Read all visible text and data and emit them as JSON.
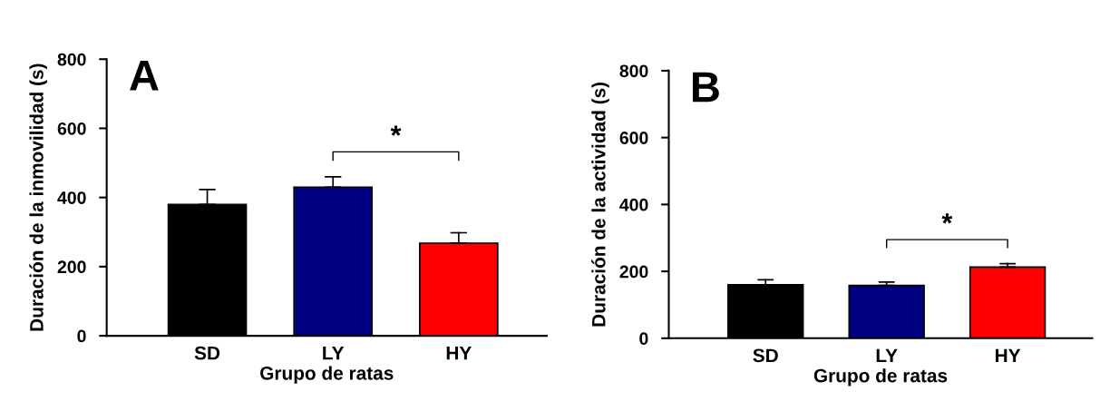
{
  "chart_data": [
    {
      "type": "bar",
      "title": "A",
      "xlabel": "Grupo de ratas",
      "ylabel": "Duración de la inmovilidad (s)",
      "categories": [
        "SD",
        "LY",
        "HY"
      ],
      "values": [
        380,
        430,
        268
      ],
      "colors": [
        "#000000",
        "#000080",
        "#ff0000"
      ],
      "errors": [
        [
          380,
          423
        ],
        [
          430,
          460
        ],
        [
          268,
          298
        ]
      ],
      "ylim": [
        0,
        800
      ],
      "yticks": [
        0,
        200,
        400,
        600,
        800
      ],
      "annotations": [
        "*"
      ],
      "grid": false,
      "legend": false
    },
    {
      "type": "bar",
      "title": "B",
      "xlabel": "Grupo de ratas",
      "ylabel": "Duración de la actividad (s)",
      "categories": [
        "SD",
        "LY",
        "HY"
      ],
      "values": [
        160,
        158,
        213
      ],
      "colors": [
        "#000000",
        "#000080",
        "#ff0000"
      ],
      "errors": [
        [
          160,
          175
        ],
        [
          158,
          168
        ],
        [
          213,
          223
        ]
      ],
      "ylim": [
        0,
        800
      ],
      "yticks": [
        0,
        200,
        400,
        600,
        800
      ],
      "annotations": [
        "*"
      ],
      "grid": false,
      "legend": false
    }
  ]
}
